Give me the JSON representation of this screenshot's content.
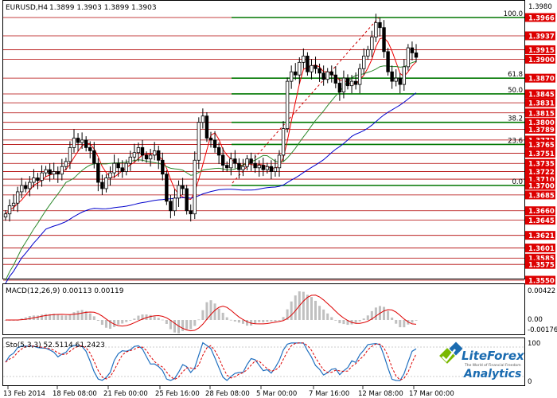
{
  "header": {
    "symbol": "EURUSD,H4",
    "ohlc": "1.3899 1.3903 1.3899 1.3903"
  },
  "colors": {
    "price_box": "#dd0000",
    "hline": "#b00000",
    "fib": "#007700",
    "ma_red": "#ee0000",
    "ma_green": "#2f8a2f",
    "ma_blue": "#0000cc",
    "candle": "#000000",
    "macd_hist": "#c0c0c0",
    "macd_signal": "#dd0000",
    "stoch_main": "#2070c0",
    "stoch_signal": "#dd0000",
    "logo_green": "#7ab800",
    "logo_blue": "#1a6bb0"
  },
  "price_levels": [
    "1.3966",
    "1.3937",
    "1.3915",
    "1.3900",
    "1.3870",
    "1.3845",
    "1.3831",
    "1.3815",
    "1.3800",
    "1.3789",
    "1.3772",
    "1.3765",
    "1.3751",
    "1.3735",
    "1.3722",
    "1.3710",
    "1.3700",
    "1.3685",
    "1.3660",
    "1.3645",
    "1.3621",
    "1.3601",
    "1.3585",
    "1.3575",
    "1.3550"
  ],
  "top_price_label": "1.3980",
  "fib_levels": [
    {
      "label": "100.0",
      "price": 1.3966
    },
    {
      "label": "61.8",
      "price": 1.387
    },
    {
      "label": "50.0",
      "price": 1.3845
    },
    {
      "label": "38.2",
      "price": 1.38
    },
    {
      "label": "23.6",
      "price": 1.3765
    },
    {
      "label": "0.0",
      "price": 1.37
    }
  ],
  "x_axis_labels": [
    "13 Feb 2014",
    "18 Feb 08:00",
    "21 Feb 00:00",
    "25 Feb 16:00",
    "28 Feb 08:00",
    "5 Mar 00:00",
    "7 Mar 16:00",
    "12 Mar 08:00",
    "17 Mar 00:00"
  ],
  "macd": {
    "label": "MACD(12,26,9) 0.00113 0.00119",
    "ticks": [
      "0.00422",
      "0.00",
      "-0.00176"
    ]
  },
  "stoch": {
    "label": "Sto(5,3,3) 52.5114 61.2423",
    "ticks": [
      "100",
      "0"
    ]
  },
  "logo": {
    "name": "LiteForex",
    "tagline": "The World of Financial Freedom",
    "sub": "Analytics"
  },
  "chart_data": {
    "type": "candlestick",
    "symbol": "EURUSD",
    "timeframe": "H4",
    "ylim": [
      1.355,
      1.398
    ],
    "close_series": [
      1.3655,
      1.3668,
      1.3672,
      1.369,
      1.37,
      1.3695,
      1.3705,
      1.3712,
      1.3708,
      1.372,
      1.3725,
      1.3718,
      1.3722,
      1.3718,
      1.373,
      1.3738,
      1.376,
      1.3775,
      1.3768,
      1.3772,
      1.376,
      1.3755,
      1.3735,
      1.3705,
      1.3695,
      1.3712,
      1.372,
      1.3735,
      1.3728,
      1.3722,
      1.3735,
      1.3745,
      1.3752,
      1.376,
      1.3748,
      1.3742,
      1.3748,
      1.3755,
      1.374,
      1.3718,
      1.3675,
      1.366,
      1.368,
      1.37,
      1.3695,
      1.366,
      1.3655,
      1.374,
      1.38,
      1.381,
      1.3775,
      1.3772,
      1.376,
      1.3748,
      1.3732,
      1.3728,
      1.3742,
      1.3735,
      1.3725,
      1.373,
      1.3742,
      1.3735,
      1.3728,
      1.3732,
      1.3725,
      1.373,
      1.3722,
      1.3728,
      1.3748,
      1.379,
      1.3865,
      1.388,
      1.3875,
      1.3895,
      1.3905,
      1.388,
      1.389,
      1.3885,
      1.3878,
      1.3868,
      1.388,
      1.3875,
      1.3862,
      1.3848,
      1.387,
      1.3858,
      1.3865,
      1.386,
      1.3885,
      1.3905,
      1.3915,
      1.3935,
      1.3958,
      1.395,
      1.3912,
      1.388,
      1.3865,
      1.387,
      1.386,
      1.3888,
      1.3918,
      1.391,
      1.3903
    ],
    "hlines": [
      1.3966,
      1.3937,
      1.3915,
      1.39,
      1.387,
      1.3845,
      1.3831,
      1.3815,
      1.38,
      1.3789,
      1.3772,
      1.3765,
      1.3751,
      1.3735,
      1.3722,
      1.371,
      1.37,
      1.3685,
      1.366,
      1.3645,
      1.3621,
      1.3601,
      1.3585,
      1.3575,
      1.355
    ]
  }
}
